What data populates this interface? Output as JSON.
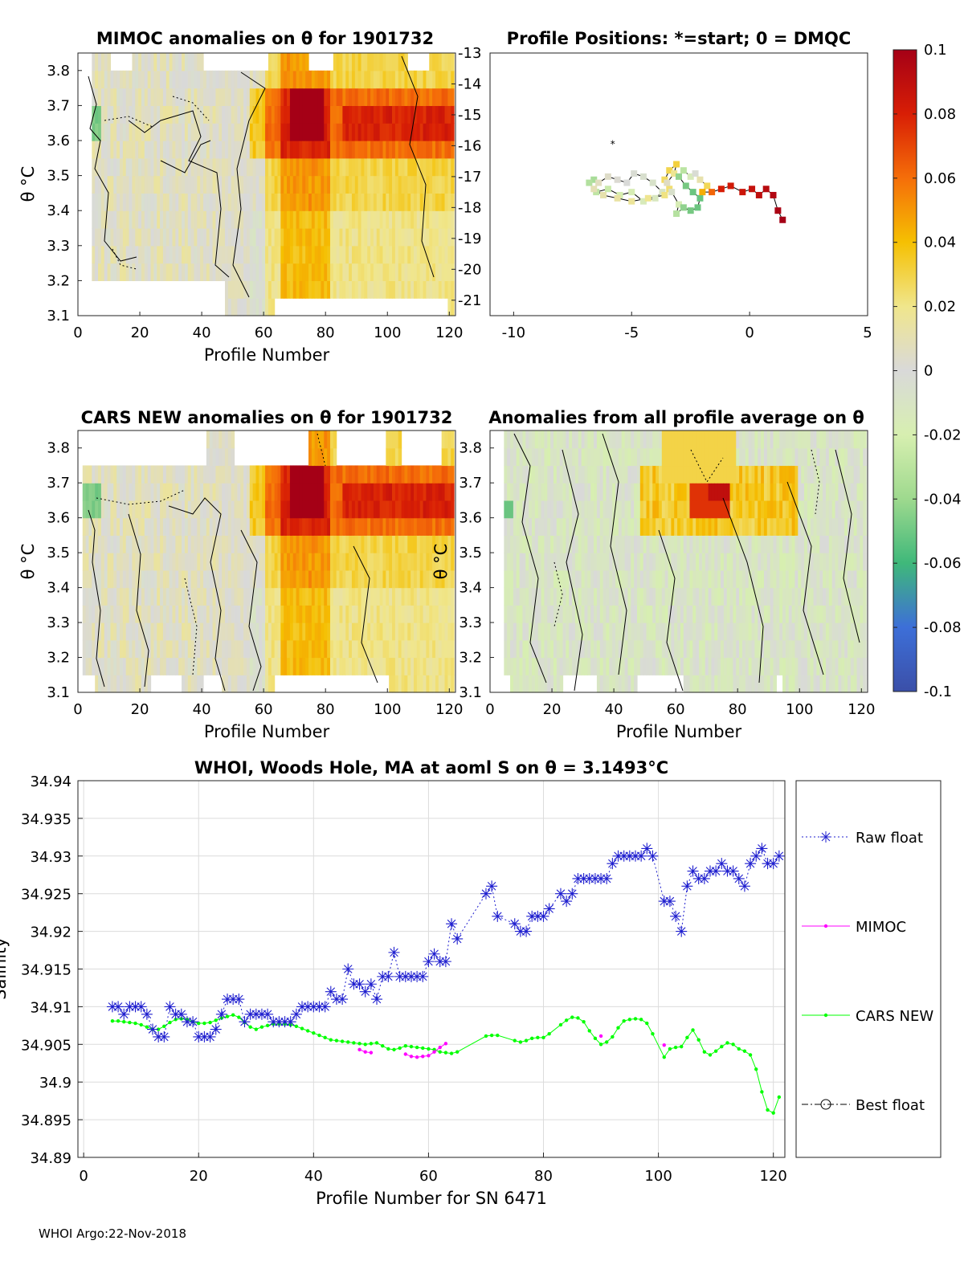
{
  "footer": "WHOI Argo:22-Nov-2018",
  "chart_data": [
    {
      "type": "heatmap",
      "title": "MIMOC anomalies on θ  for 1901732",
      "xlabel": "Profile Number",
      "ylabel": "θ °C",
      "xlim": [
        0,
        122
      ],
      "ylim": [
        3.1,
        3.85
      ],
      "xticks": [
        "0",
        "20",
        "40",
        "60",
        "80",
        "100",
        "120"
      ],
      "yticks": [
        "3.1",
        "3.2",
        "3.3",
        "3.4",
        "3.5",
        "3.6",
        "3.7",
        "3.8"
      ],
      "right_axis_ticks": [
        "-13",
        "-14",
        "-15",
        "-16",
        "-17",
        "-18",
        "-19",
        "-20",
        "-21"
      ],
      "anomaly_peak": {
        "theta_range": [
          3.6,
          3.7
        ],
        "profile_range": [
          65,
          80
        ],
        "value": 0.09
      }
    },
    {
      "type": "scatter",
      "title": "Profile Positions: *=start; 0 = DMQC",
      "xlim": [
        -11,
        5
      ],
      "ylim": [
        -21.5,
        -13
      ],
      "xticks": [
        "-10",
        "-5",
        "0",
        "5"
      ]
    },
    {
      "type": "heatmap",
      "title": "CARS NEW anomalies on θ for 1901732",
      "xlabel": "Profile Number",
      "ylabel": "θ °C",
      "xlim": [
        0,
        122
      ],
      "ylim": [
        3.1,
        3.85
      ],
      "xticks": [
        "0",
        "20",
        "40",
        "60",
        "80",
        "100",
        "120"
      ],
      "yticks": [
        "3.1",
        "3.2",
        "3.3",
        "3.4",
        "3.5",
        "3.6",
        "3.7",
        "3.8"
      ]
    },
    {
      "type": "heatmap",
      "title": "Anomalies from all profile average on θ",
      "xlabel": "Profile Number",
      "ylabel": "θ °C",
      "xlim": [
        0,
        122
      ],
      "ylim": [
        3.1,
        3.85
      ],
      "xticks": [
        "0",
        "20",
        "40",
        "60",
        "80",
        "100",
        "120"
      ]
    },
    {
      "type": "colorbar",
      "range": [
        -0.1,
        0.1
      ],
      "ticks": [
        "0.1",
        "0.08",
        "0.06",
        "0.04",
        "0.02",
        "0",
        "-0.02",
        "-0.04",
        "-0.06",
        "-0.08",
        "-0.1"
      ]
    },
    {
      "type": "line",
      "title": "WHOI, Woods Hole, MA at aoml S on θ = 3.1493°C",
      "xlabel": "Profile Number for SN 6471",
      "ylabel": "Salinity",
      "xlim": [
        -1,
        122
      ],
      "ylim": [
        34.89,
        34.94
      ],
      "xticks": [
        "0",
        "20",
        "40",
        "60",
        "80",
        "100",
        "120"
      ],
      "yticks": [
        "34.94",
        "34.935",
        "34.93",
        "34.925",
        "34.92",
        "34.915",
        "34.91",
        "34.905",
        "34.9",
        "34.895",
        "34.89"
      ],
      "grid": true,
      "legend": "right",
      "series": [
        {
          "name": "Raw float",
          "style": "dotted-asterisk",
          "color": "#1f1fcf",
          "x": [
            5,
            6,
            7,
            8,
            9,
            10,
            11,
            12,
            13,
            14,
            15,
            16,
            17,
            18,
            19,
            20,
            21,
            22,
            23,
            24,
            25,
            26,
            27,
            28,
            29,
            30,
            31,
            32,
            33,
            34,
            35,
            36,
            37,
            38,
            39,
            40,
            41,
            42,
            43,
            44,
            45,
            46,
            47,
            48,
            49,
            50,
            51,
            52,
            53,
            54,
            55,
            56,
            57,
            58,
            59,
            60,
            61,
            62,
            63,
            64,
            65,
            70,
            71,
            72,
            75,
            76,
            77,
            78,
            79,
            80,
            81,
            83,
            84,
            85,
            86,
            87,
            88,
            89,
            90,
            91,
            92,
            93,
            94,
            95,
            96,
            97,
            98,
            99,
            101,
            102,
            103,
            104,
            105,
            106,
            107,
            108,
            109,
            110,
            111,
            112,
            113,
            114,
            115,
            116,
            117,
            118,
            119,
            120,
            121
          ],
          "values": [
            34.91,
            34.91,
            34.909,
            34.91,
            34.91,
            34.91,
            34.909,
            34.907,
            34.906,
            34.906,
            34.91,
            34.909,
            34.909,
            34.908,
            34.908,
            34.906,
            34.906,
            34.906,
            34.907,
            34.909,
            34.911,
            34.911,
            34.911,
            34.908,
            34.909,
            34.909,
            34.909,
            34.909,
            34.908,
            34.908,
            34.908,
            34.908,
            34.909,
            34.91,
            34.91,
            34.91,
            34.91,
            34.91,
            34.912,
            34.911,
            34.911,
            34.915,
            34.913,
            34.913,
            34.912,
            34.913,
            34.911,
            34.914,
            34.914,
            34.9172,
            34.914,
            34.914,
            34.914,
            34.914,
            34.914,
            34.916,
            34.917,
            34.916,
            34.916,
            34.921,
            34.919,
            34.925,
            34.926,
            34.922,
            34.921,
            34.92,
            34.92,
            34.922,
            34.922,
            34.922,
            34.923,
            34.925,
            34.924,
            34.925,
            34.927,
            34.927,
            34.927,
            34.927,
            34.927,
            34.927,
            34.929,
            34.93,
            34.93,
            34.93,
            34.93,
            34.93,
            34.931,
            34.93,
            34.924,
            34.924,
            34.922,
            34.92,
            34.926,
            34.928,
            34.927,
            34.927,
            34.928,
            34.928,
            34.929,
            34.928,
            34.928,
            34.927,
            34.926,
            34.929,
            34.93,
            34.931,
            34.929,
            34.929,
            34.93
          ]
        },
        {
          "name": "MIMOC",
          "style": "line-dot",
          "color": "#ff00ff",
          "segments": [
            {
              "x": [
                48,
                49,
                50
              ],
              "values": [
                34.9043,
                34.904,
                34.9039
              ]
            },
            {
              "x": [
                56,
                57,
                58,
                59,
                60,
                61,
                62,
                63
              ],
              "values": [
                34.9037,
                34.9034,
                34.9033,
                34.9034,
                34.9035,
                34.904,
                34.9046,
                34.9051
              ]
            },
            {
              "x": [
                90
              ],
              "values": [
                34.9061
              ]
            },
            {
              "x": [
                101
              ],
              "values": [
                34.9049
              ]
            }
          ]
        },
        {
          "name": "CARS NEW",
          "style": "line-dot",
          "color": "#00ff00",
          "x": [
            5,
            6,
            7,
            8,
            9,
            10,
            11,
            12,
            13,
            14,
            15,
            16,
            17,
            18,
            19,
            20,
            21,
            22,
            23,
            24,
            25,
            26,
            27,
            28,
            29,
            30,
            31,
            32,
            33,
            34,
            35,
            36,
            37,
            38,
            39,
            40,
            41,
            42,
            43,
            44,
            45,
            46,
            47,
            48,
            49,
            50,
            51,
            52,
            53,
            54,
            55,
            56,
            57,
            58,
            59,
            60,
            61,
            62,
            63,
            64,
            65,
            70,
            71,
            72,
            75,
            76,
            77,
            78,
            79,
            80,
            81,
            83,
            84,
            85,
            86,
            87,
            88,
            89,
            90,
            91,
            92,
            93,
            94,
            95,
            96,
            97,
            98,
            99,
            101,
            102,
            103,
            104,
            105,
            106,
            107,
            108,
            109,
            110,
            111,
            112,
            113,
            114,
            115,
            116,
            117,
            118,
            119,
            120,
            121
          ],
          "values": [
            34.9081,
            34.9081,
            34.908,
            34.9079,
            34.9078,
            34.9076,
            34.9073,
            34.907,
            34.907,
            34.9074,
            34.9079,
            34.9083,
            34.9084,
            34.9083,
            34.908,
            34.9078,
            34.9078,
            34.9079,
            34.9082,
            34.9085,
            34.9087,
            34.9089,
            34.9086,
            34.9079,
            34.9073,
            34.907,
            34.9073,
            34.9075,
            34.9077,
            34.9077,
            34.9077,
            34.9076,
            34.9074,
            34.9071,
            34.9068,
            34.9065,
            34.9062,
            34.9059,
            34.9056,
            34.9055,
            34.9054,
            34.9053,
            34.9052,
            34.9051,
            34.905,
            34.9051,
            34.9052,
            34.9048,
            34.9044,
            34.9043,
            34.9045,
            34.9048,
            34.9047,
            34.9046,
            34.9045,
            34.9044,
            34.9043,
            34.904,
            34.9039,
            34.9038,
            34.904,
            34.9061,
            34.9062,
            34.9062,
            34.9055,
            34.9053,
            34.9055,
            34.9058,
            34.9059,
            34.9059,
            34.9064,
            34.9076,
            34.9082,
            34.9086,
            34.9085,
            34.908,
            34.9068,
            34.9058,
            34.905,
            34.9053,
            34.906,
            34.9072,
            34.9081,
            34.9083,
            34.9084,
            34.9083,
            34.9078,
            34.9064,
            34.9033,
            34.9044,
            34.9046,
            34.9047,
            34.9059,
            34.9069,
            34.9056,
            34.904,
            34.9036,
            34.9041,
            34.9047,
            34.9052,
            34.905,
            34.9044,
            34.9041,
            34.9036,
            34.9017,
            34.8987,
            34.8963,
            34.8959,
            34.898
          ]
        },
        {
          "name": "Best float",
          "style": "dashdot-circle",
          "color": "#000000",
          "values": []
        }
      ]
    }
  ]
}
